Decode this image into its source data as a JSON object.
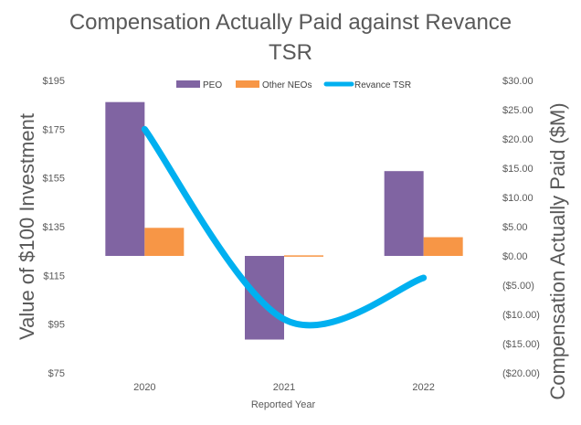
{
  "chart_data": {
    "type": "bar",
    "title_line1": "Compensation Actually Paid against Revance",
    "title_line2": "TSR",
    "xlabel": "Reported Year",
    "ylabel_left": "Value of $100 Investment",
    "ylabel_right": "Compensation Actually Paid ($M)",
    "categories": [
      "2020",
      "2021",
      "2022"
    ],
    "series": [
      {
        "name": "PEO",
        "axis": "right",
        "type": "bar",
        "color": "#8064A2",
        "values": [
          26.3,
          -14.3,
          14.5
        ]
      },
      {
        "name": "Other NEOs",
        "axis": "right",
        "type": "bar",
        "color": "#F79646",
        "values": [
          4.8,
          0.1,
          3.2
        ]
      },
      {
        "name": "Revance TSR",
        "axis": "left",
        "type": "line",
        "color": "#00B0F0",
        "values": [
          175,
          97,
          114
        ]
      }
    ],
    "left_axis": {
      "min": 75,
      "max": 195,
      "step": 20,
      "tick_labels": [
        "$75",
        "$95",
        "$115",
        "$135",
        "$155",
        "$175",
        "$195"
      ]
    },
    "right_axis": {
      "min": -20,
      "max": 30,
      "step": 5,
      "tick_labels": [
        "($20.00)",
        "($15.00)",
        "($10.00)",
        "($5.00)",
        "$0.00",
        "$5.00",
        "$10.00",
        "$15.00",
        "$20.00",
        "$25.00",
        "$30.00"
      ],
      "negative_color": "#C00000"
    },
    "legend": [
      "PEO",
      "Other NEOs",
      "Revance TSR"
    ],
    "legend_position": "top"
  }
}
